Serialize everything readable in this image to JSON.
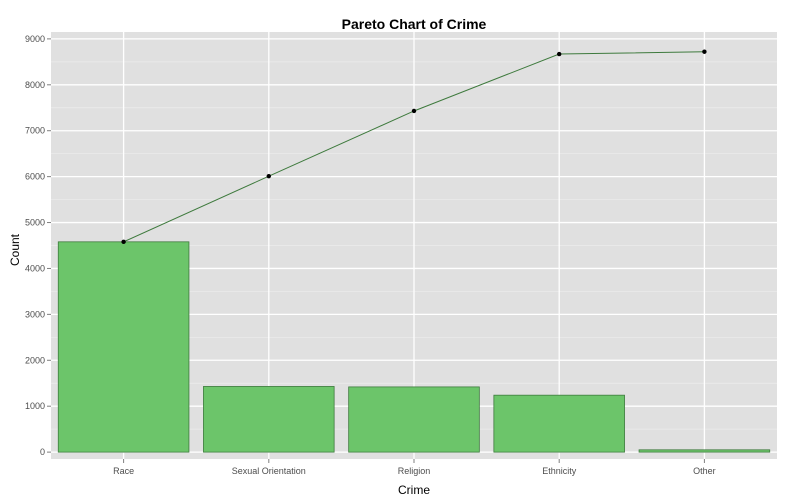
{
  "chart_data": {
    "type": "bar",
    "title": "Pareto Chart of Crime",
    "xlabel": "Crime",
    "ylabel": "Count",
    "categories": [
      "Race",
      "Sexual Orientation",
      "Religion",
      "Ethnicity",
      "Other"
    ],
    "values": [
      4580,
      1430,
      1420,
      1240,
      50
    ],
    "cumulative": [
      4580,
      6010,
      7430,
      8670,
      8720
    ],
    "ylim": [
      -150,
      9150
    ],
    "yticks": [
      0,
      1000,
      2000,
      3000,
      4000,
      5000,
      6000,
      7000,
      8000,
      9000
    ],
    "grid": true,
    "colors": {
      "panel": "#e0e0e0",
      "grid": "#ffffff",
      "bar_fill": "#6cc56a",
      "bar_stroke": "#3e7a3d",
      "line": "#3e7a3d",
      "point": "#000000"
    }
  }
}
